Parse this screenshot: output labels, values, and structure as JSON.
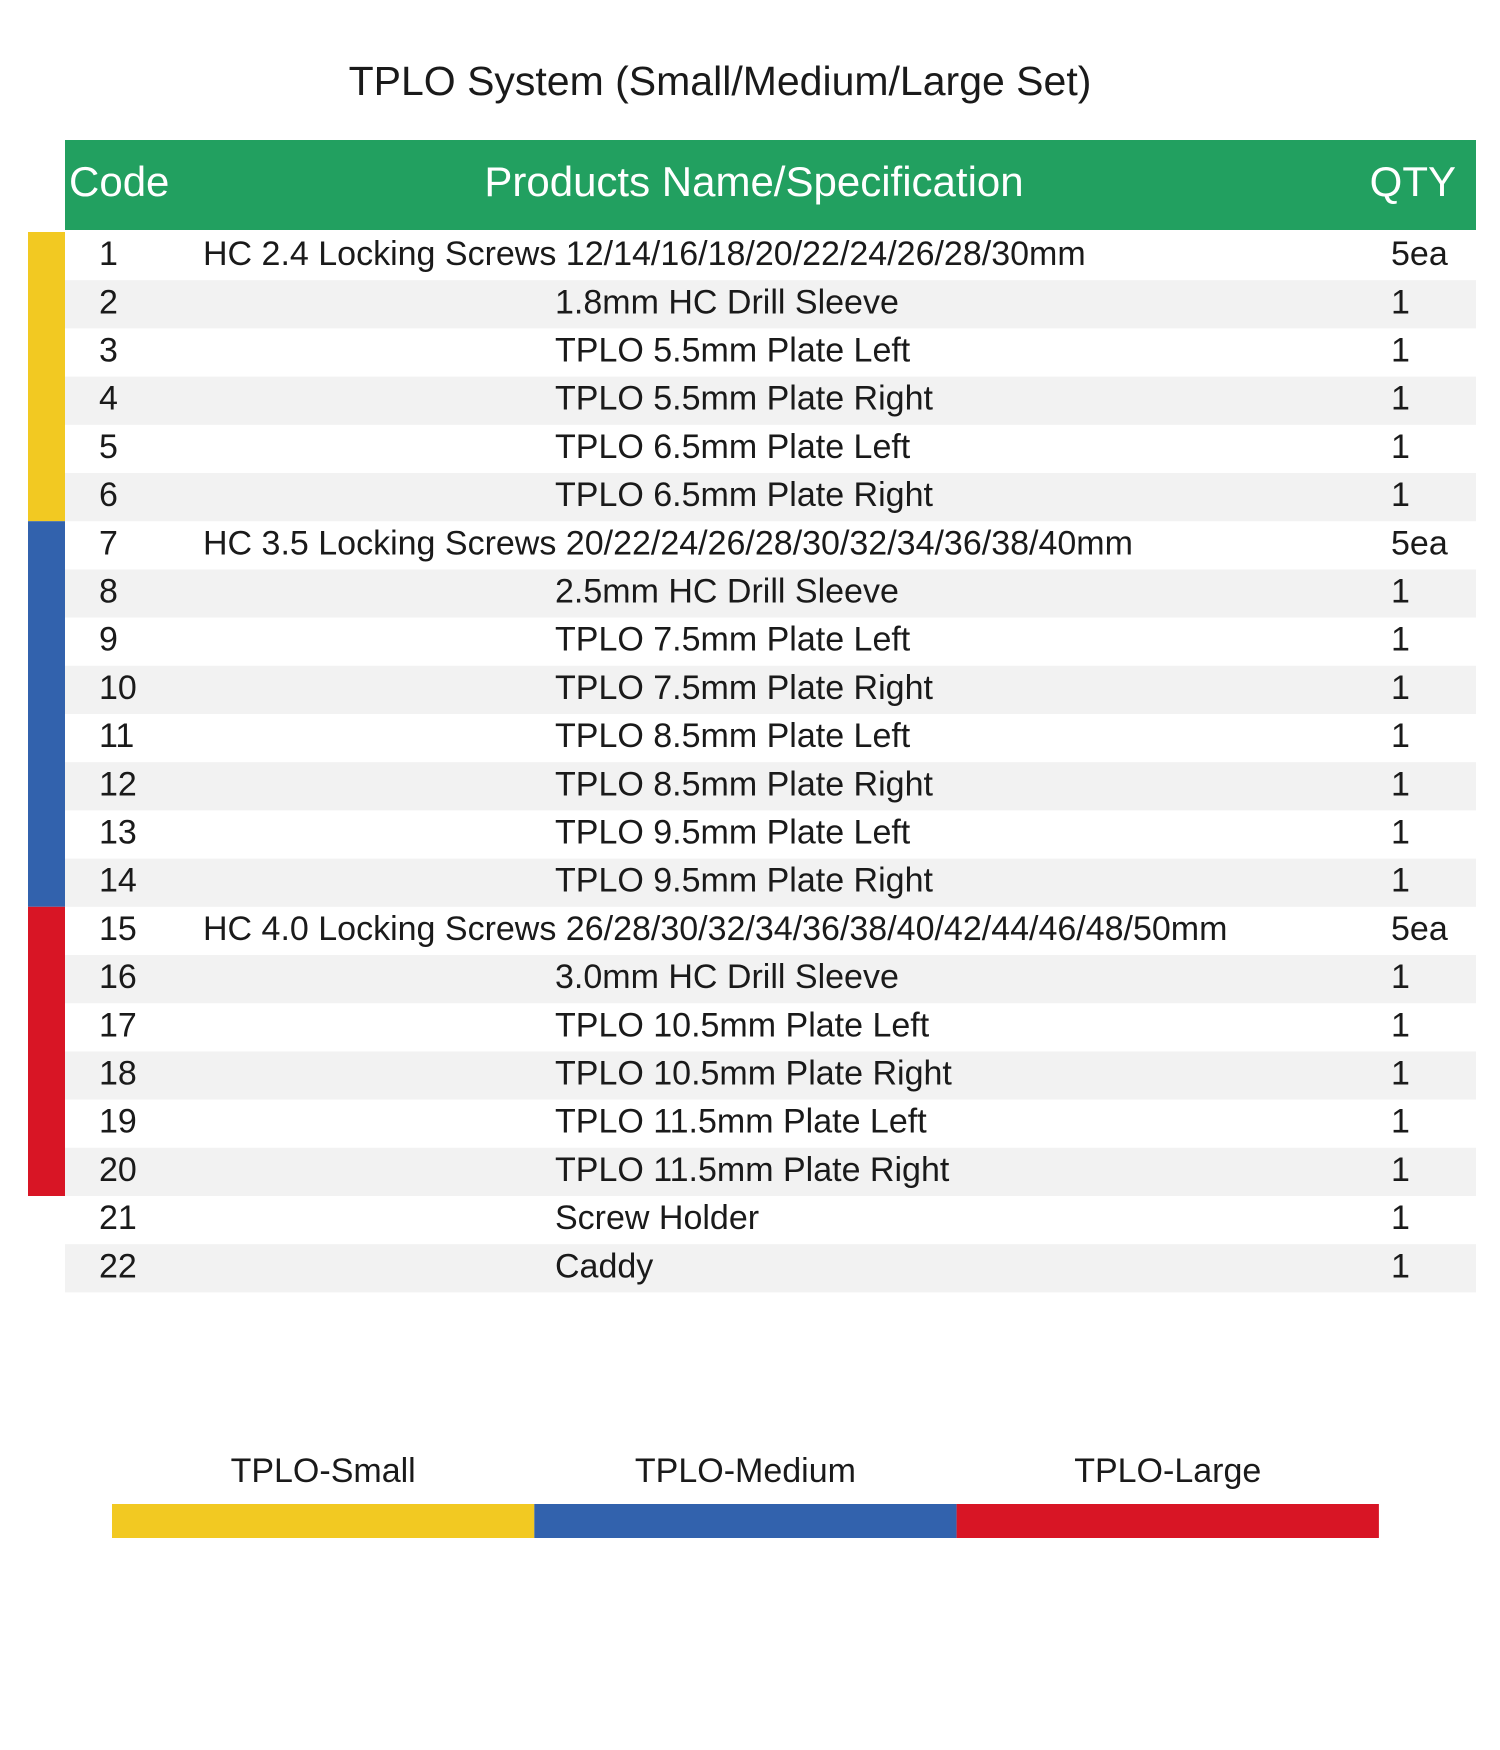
{
  "title": "TPLO System (Small/Medium/Large Set)",
  "table": {
    "header": {
      "code": "Code",
      "name": "Products Name/Specification",
      "qty": "QTY"
    },
    "header_color": "#22a060",
    "rows": [
      [
        "1",
        "HC 2.4 Locking Screws 12/14/16/18/20/22/24/26/28/30mm",
        "5ea"
      ],
      [
        "2",
        "1.8mm HC Drill Sleeve",
        "1"
      ],
      [
        "3",
        "TPLO 5.5mm Plate Left",
        "1"
      ],
      [
        "4",
        "TPLO 5.5mm Plate Right",
        "1"
      ],
      [
        "5",
        "TPLO 6.5mm Plate Left",
        "1"
      ],
      [
        "6",
        "TPLO 6.5mm Plate Right",
        "1"
      ],
      [
        "7",
        "HC 3.5 Locking Screws 20/22/24/26/28/30/32/34/36/38/40mm",
        "5ea"
      ],
      [
        "8",
        "2.5mm HC Drill Sleeve",
        "1"
      ],
      [
        "9",
        "TPLO 7.5mm Plate Left",
        "1"
      ],
      [
        "10",
        "TPLO 7.5mm Plate Right",
        "1"
      ],
      [
        "11",
        "TPLO 8.5mm Plate Left",
        "1"
      ],
      [
        "12",
        "TPLO 8.5mm Plate Right",
        "1"
      ],
      [
        "13",
        "TPLO 9.5mm Plate Left",
        "1"
      ],
      [
        "14",
        "TPLO 9.5mm Plate Right",
        "1"
      ],
      [
        "15",
        "HC 4.0 Locking Screws 26/28/30/32/34/36/38/40/42/44/46/48/50mm",
        "5ea"
      ],
      [
        "16",
        "3.0mm HC Drill Sleeve",
        "1"
      ],
      [
        "17",
        "TPLO 10.5mm Plate Left",
        "1"
      ],
      [
        "18",
        "TPLO 10.5mm Plate Right",
        "1"
      ],
      [
        "19",
        "TPLO 11.5mm Plate Left",
        "1"
      ],
      [
        "20",
        "TPLO 11.5mm Plate Right",
        "1"
      ],
      [
        "21",
        "Screw Holder",
        "1"
      ],
      [
        "22",
        "Caddy",
        "1"
      ]
    ]
  },
  "legend": [
    {
      "label": "TPLO-Small",
      "color": "#f2c922"
    },
    {
      "label": "TPLO-Medium",
      "color": "#3262ad"
    },
    {
      "label": "TPLO-Large",
      "color": "#d81525"
    }
  ]
}
